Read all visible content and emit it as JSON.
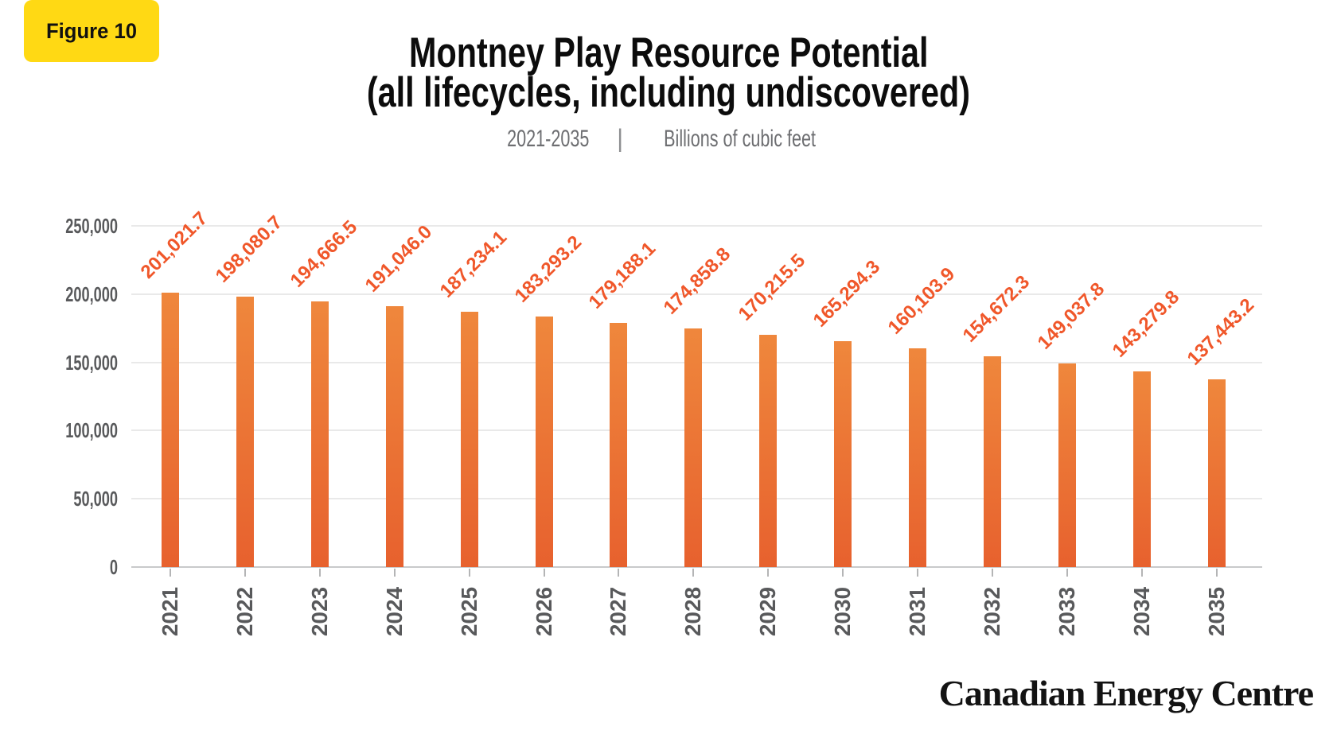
{
  "figure_badge": {
    "label": "Figure 10"
  },
  "header": {
    "title_line1": "Montney Play Resource Potential",
    "title_line2": "(all lifecycles, including undiscovered)",
    "subtitle_range": "2021-2035",
    "subtitle_separator": "|",
    "subtitle_units": "Billions of cubic feet"
  },
  "chart_data": {
    "type": "bar",
    "title": "Montney Play Resource Potential (all lifecycles, including undiscovered)",
    "subtitle": "2021-2035 | Billions of cubic feet",
    "units": "Billions of cubic feet",
    "categories": [
      "2021",
      "2022",
      "2023",
      "2024",
      "2025",
      "2026",
      "2027",
      "2028",
      "2029",
      "2030",
      "2031",
      "2032",
      "2033",
      "2034",
      "2035"
    ],
    "values": [
      201021.7,
      198080.7,
      194666.5,
      191046.0,
      187234.1,
      183293.2,
      179188.1,
      174858.8,
      170215.5,
      165294.3,
      160103.9,
      154672.3,
      149037.8,
      143279.8,
      137443.2
    ],
    "value_labels": [
      "201,021.7",
      "198,080.7",
      "194,666.5",
      "191,046.0",
      "187,234.1",
      "183,293.2",
      "179,188.1",
      "174,858.8",
      "170,215.5",
      "165,294.3",
      "160,103.9",
      "154,672.3",
      "149,037.8",
      "143,279.8",
      "137,443.2"
    ],
    "xlabel": "",
    "ylabel": "",
    "y_ticks": [
      0,
      50000,
      100000,
      150000,
      200000,
      250000
    ],
    "y_tick_labels": [
      "0",
      "50,000",
      "100,000",
      "150,000",
      "200,000",
      "250,000"
    ],
    "ylim": [
      0,
      250000
    ],
    "grid": "horizontal-only",
    "legend": "none",
    "value_label_rotation_deg": -45,
    "x_label_rotation_deg": -90
  },
  "footer": {
    "brand": "Canadian Energy Centre"
  },
  "colors": {
    "badge_yellow": "#FFD914",
    "bar_gradient_top": "#EF873C",
    "bar_gradient_bottom": "#E7612E",
    "value_label_orange": "#F0572A",
    "axis_text_gray": "#58595B",
    "subtitle_gray": "#6D6E71",
    "gridline_gray": "#E9E9E9",
    "baseline_gray": "#C9CACB",
    "background": "#FFFFFF"
  }
}
